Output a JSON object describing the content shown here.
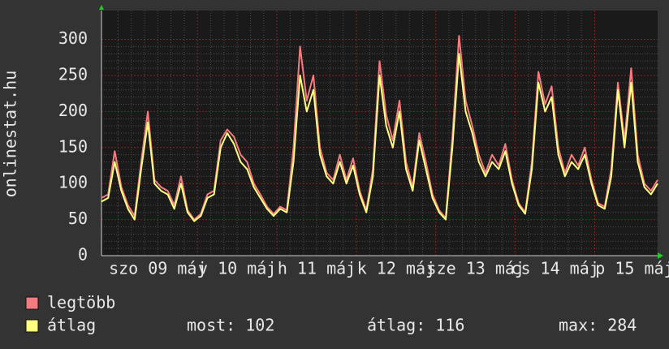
{
  "chart_data": {
    "type": "line",
    "y_label": "onlinestat.hu",
    "x": [
      0,
      2,
      4,
      6,
      8,
      10,
      12,
      14,
      16,
      18,
      20,
      22,
      24,
      26,
      28,
      30,
      32,
      34,
      36,
      38,
      40,
      42,
      44,
      46,
      48,
      50,
      52,
      54,
      56,
      58,
      60,
      62,
      64,
      66,
      68,
      70,
      72,
      74,
      76,
      78,
      80,
      82,
      84,
      86,
      88,
      90,
      92,
      94,
      96,
      98,
      100,
      102,
      104,
      106,
      108,
      110,
      112,
      114,
      116,
      118,
      120,
      122,
      124,
      126,
      128,
      130,
      132,
      134,
      136,
      138,
      140,
      142,
      144,
      146,
      148,
      150,
      152,
      154,
      156,
      158,
      160,
      162,
      164,
      166,
      168
    ],
    "xlim": [
      0,
      168
    ],
    "xticks": [
      {
        "value": 17,
        "label": "szo 09 máj"
      },
      {
        "value": 41,
        "label": "v 10 máj"
      },
      {
        "value": 65,
        "label": "h 11 máj"
      },
      {
        "value": 89,
        "label": "k 12 máj"
      },
      {
        "value": 113,
        "label": "sze 13 máj"
      },
      {
        "value": 137,
        "label": "cs 14 máj"
      },
      {
        "value": 161,
        "label": "p 15 máj"
      }
    ],
    "x_major_grid": [
      5,
      29,
      53,
      77,
      101,
      125,
      149
    ],
    "ylim": [
      0,
      340
    ],
    "yticks": [
      0,
      50,
      100,
      150,
      200,
      250,
      300
    ],
    "grid": true,
    "series": [
      {
        "name": "legtöbb",
        "color": "#f47c80",
        "values": [
          80,
          85,
          145,
          95,
          70,
          55,
          130,
          200,
          105,
          95,
          90,
          70,
          110,
          63,
          50,
          58,
          85,
          90,
          160,
          175,
          165,
          140,
          130,
          100,
          85,
          68,
          58,
          68,
          63,
          150,
          290,
          215,
          250,
          150,
          115,
          105,
          140,
          105,
          135,
          90,
          63,
          120,
          270,
          195,
          160,
          215,
          130,
          95,
          170,
          130,
          85,
          63,
          52,
          165,
          305,
          215,
          180,
          140,
          115,
          140,
          125,
          155,
          105,
          73,
          60,
          130,
          255,
          210,
          235,
          150,
          115,
          140,
          125,
          150,
          105,
          73,
          68,
          120,
          240,
          160,
          260,
          140,
          100,
          90,
          105
        ]
      },
      {
        "name": "átlag",
        "color": "#ffff80",
        "values": [
          75,
          80,
          130,
          90,
          65,
          50,
          120,
          185,
          100,
          90,
          85,
          65,
          100,
          60,
          48,
          55,
          80,
          85,
          150,
          170,
          155,
          130,
          120,
          95,
          80,
          65,
          55,
          65,
          60,
          130,
          250,
          200,
          230,
          140,
          110,
          100,
          130,
          100,
          125,
          85,
          60,
          110,
          250,
          180,
          150,
          200,
          120,
          90,
          160,
          120,
          80,
          60,
          50,
          150,
          280,
          200,
          170,
          130,
          110,
          130,
          120,
          145,
          100,
          70,
          58,
          120,
          240,
          200,
          220,
          140,
          110,
          130,
          120,
          140,
          100,
          70,
          65,
          110,
          230,
          150,
          240,
          130,
          95,
          85,
          100
        ]
      }
    ],
    "stats": [
      "most: 102",
      "átlag: 116",
      "max: 284"
    ]
  }
}
